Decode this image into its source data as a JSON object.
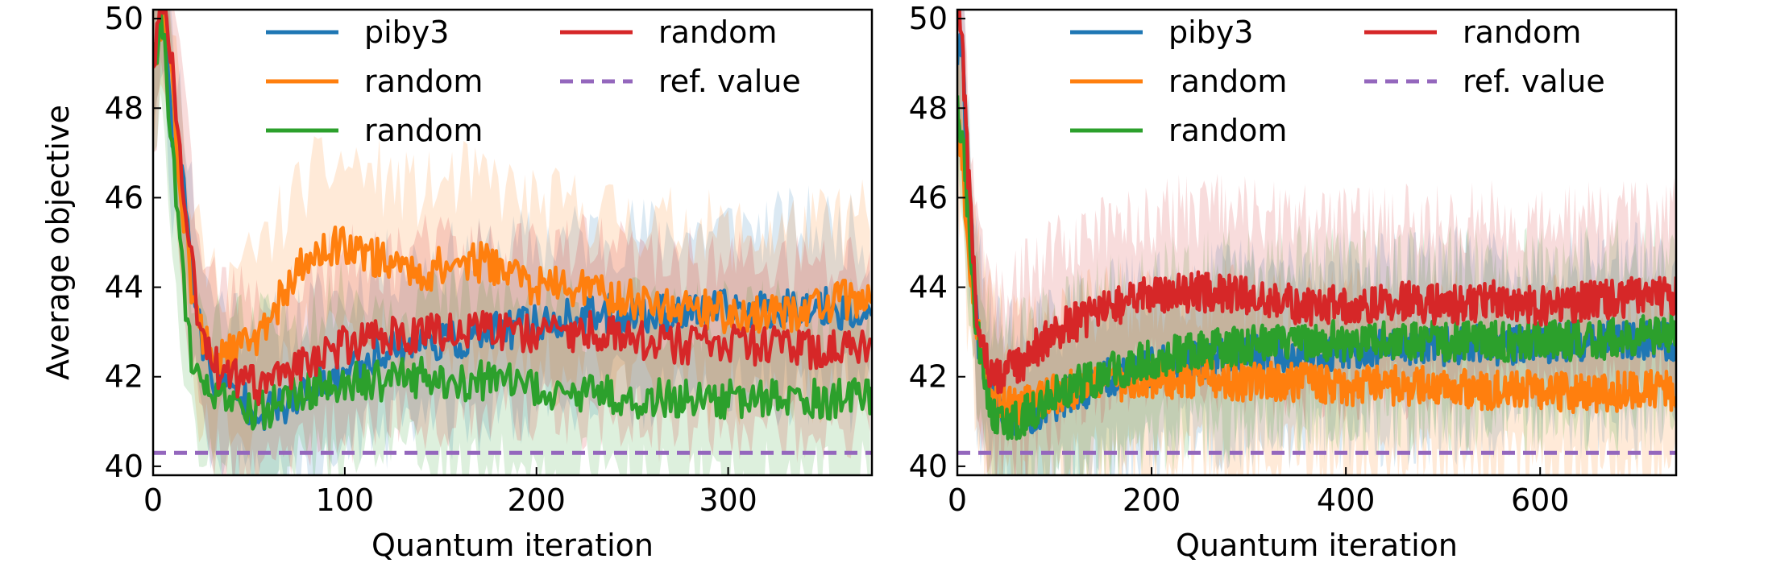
{
  "chart_data": [
    {
      "type": "line",
      "xlabel": "Quantum iteration",
      "ylabel": "Average objective",
      "xlim": [
        0,
        375
      ],
      "ylim": [
        39.8,
        50.2
      ],
      "xticks": [
        0,
        100,
        200,
        300
      ],
      "yticks": [
        40,
        42,
        44,
        46,
        48,
        50
      ],
      "grid": false,
      "legend": {
        "placement": "top",
        "columns": 2
      },
      "series": [
        {
          "name": "piby3",
          "color": "#1f77b4",
          "x": [
            0,
            5,
            10,
            15,
            20,
            25,
            30,
            40,
            50,
            60,
            80,
            100,
            120,
            140,
            160,
            180,
            200,
            220,
            240,
            260,
            280,
            300,
            320,
            340,
            360,
            375
          ],
          "y": [
            49.0,
            50.5,
            47.5,
            46.5,
            44.5,
            43.0,
            42.0,
            41.7,
            41.4,
            41.2,
            41.6,
            42.1,
            42.6,
            42.8,
            42.8,
            43.0,
            43.2,
            43.3,
            43.4,
            43.4,
            43.4,
            43.5,
            43.5,
            43.6,
            43.5,
            43.2
          ]
        },
        {
          "name": "random",
          "color": "#ff7f0e",
          "x": [
            0,
            5,
            10,
            15,
            20,
            25,
            30,
            40,
            50,
            60,
            80,
            100,
            120,
            140,
            160,
            180,
            200,
            220,
            240,
            260,
            280,
            300,
            320,
            340,
            360,
            375
          ],
          "y": [
            49.0,
            50.0,
            48.5,
            46.0,
            44.0,
            43.0,
            42.5,
            42.5,
            42.7,
            43.3,
            44.6,
            45.0,
            44.6,
            44.3,
            44.6,
            44.5,
            44.0,
            44.0,
            43.8,
            43.6,
            43.6,
            43.4,
            43.4,
            43.5,
            43.7,
            43.8
          ]
        },
        {
          "name": "random",
          "color": "#2ca02c",
          "x": [
            0,
            5,
            10,
            15,
            20,
            25,
            30,
            40,
            50,
            60,
            80,
            100,
            120,
            140,
            160,
            180,
            200,
            220,
            240,
            260,
            280,
            300,
            320,
            340,
            360,
            375
          ],
          "y": [
            49.0,
            50.0,
            47.0,
            44.5,
            42.5,
            41.8,
            41.6,
            41.3,
            41.2,
            41.3,
            41.7,
            41.9,
            41.9,
            42.0,
            41.9,
            41.9,
            41.7,
            41.6,
            41.6,
            41.5,
            41.5,
            41.5,
            41.5,
            41.5,
            41.5,
            41.6
          ]
        },
        {
          "name": "random",
          "color": "#d62728",
          "x": [
            0,
            5,
            10,
            15,
            20,
            25,
            30,
            40,
            50,
            60,
            80,
            100,
            120,
            140,
            160,
            180,
            200,
            220,
            240,
            260,
            280,
            300,
            320,
            340,
            360,
            375
          ],
          "y": [
            49.0,
            50.5,
            49.0,
            46.5,
            44.5,
            43.0,
            42.3,
            42.0,
            41.8,
            41.8,
            42.4,
            42.7,
            42.9,
            43.0,
            43.0,
            43.0,
            43.0,
            43.0,
            43.0,
            42.8,
            42.7,
            42.7,
            42.7,
            42.6,
            42.6,
            42.8
          ]
        },
        {
          "name": "ref. value",
          "color": "#9467bd",
          "dashed": true,
          "x": [
            0,
            375
          ],
          "y": [
            40.3,
            40.3
          ]
        }
      ]
    },
    {
      "type": "line",
      "xlabel": "Quantum iteration",
      "ylabel": "",
      "xlim": [
        0,
        740
      ],
      "ylim": [
        39.8,
        50.2
      ],
      "xticks": [
        0,
        200,
        400,
        600
      ],
      "yticks": [
        40,
        42,
        44,
        46,
        48,
        50
      ],
      "grid": false,
      "legend": {
        "placement": "top",
        "columns": 2
      },
      "series": [
        {
          "name": "piby3",
          "color": "#1f77b4",
          "x": [
            0,
            5,
            10,
            15,
            20,
            30,
            40,
            60,
            80,
            100,
            130,
            160,
            200,
            250,
            300,
            350,
            400,
            450,
            500,
            550,
            600,
            650,
            700,
            740
          ],
          "y": [
            49.0,
            49.5,
            46.5,
            45.0,
            43.0,
            42.0,
            41.4,
            41.1,
            41.2,
            41.4,
            41.7,
            42.0,
            42.2,
            42.4,
            42.5,
            42.5,
            42.6,
            42.6,
            42.7,
            42.7,
            42.7,
            42.8,
            42.8,
            42.8
          ]
        },
        {
          "name": "random",
          "color": "#ff7f0e",
          "x": [
            0,
            5,
            10,
            15,
            20,
            30,
            40,
            60,
            80,
            100,
            130,
            160,
            200,
            250,
            300,
            350,
            400,
            450,
            500,
            550,
            600,
            650,
            700,
            740
          ],
          "y": [
            47.5,
            47.0,
            45.0,
            44.0,
            43.0,
            42.0,
            41.5,
            41.3,
            41.4,
            41.6,
            41.8,
            41.9,
            41.9,
            42.0,
            41.9,
            41.9,
            41.8,
            41.8,
            41.8,
            41.7,
            41.7,
            41.6,
            41.7,
            41.7
          ]
        },
        {
          "name": "random",
          "color": "#2ca02c",
          "x": [
            0,
            5,
            10,
            15,
            20,
            30,
            40,
            60,
            80,
            100,
            130,
            160,
            200,
            250,
            300,
            350,
            400,
            450,
            500,
            550,
            600,
            650,
            700,
            740
          ],
          "y": [
            48.0,
            47.5,
            46.0,
            44.5,
            43.0,
            41.8,
            41.0,
            41.0,
            41.3,
            41.6,
            41.9,
            42.1,
            42.4,
            42.6,
            42.7,
            42.8,
            42.8,
            42.8,
            42.8,
            42.8,
            42.8,
            42.8,
            42.9,
            43.0
          ]
        },
        {
          "name": "random",
          "color": "#d62728",
          "x": [
            0,
            5,
            10,
            15,
            20,
            30,
            40,
            60,
            80,
            100,
            130,
            160,
            200,
            250,
            300,
            350,
            400,
            450,
            500,
            550,
            600,
            650,
            700,
            740
          ],
          "y": [
            50.5,
            49.5,
            47.0,
            45.0,
            43.5,
            42.3,
            42.0,
            42.2,
            42.6,
            43.0,
            43.3,
            43.6,
            43.8,
            43.9,
            43.8,
            43.6,
            43.6,
            43.7,
            43.6,
            43.7,
            43.6,
            43.7,
            43.8,
            43.8
          ]
        },
        {
          "name": "ref. value",
          "color": "#9467bd",
          "dashed": true,
          "x": [
            0,
            740
          ],
          "y": [
            40.3,
            40.3
          ]
        }
      ]
    }
  ]
}
